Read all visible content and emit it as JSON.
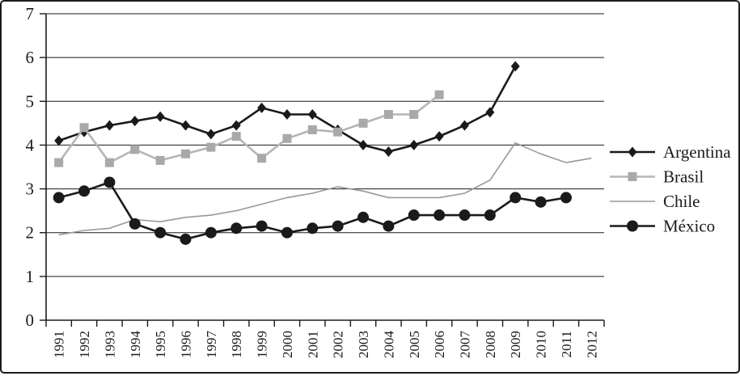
{
  "figure": {
    "background": "#ffffff",
    "border_color": "#1b1b1b"
  },
  "chart_data": {
    "type": "line",
    "title": "",
    "xlabel": "",
    "ylabel": "",
    "x": [
      "1991",
      "1992",
      "1993",
      "1994",
      "1995",
      "1996",
      "1997",
      "1998",
      "1999",
      "2000",
      "2001",
      "2002",
      "2003",
      "2004",
      "2005",
      "2006",
      "2007",
      "2008",
      "2009",
      "2010",
      "2011",
      "2012"
    ],
    "ylim": [
      0,
      7
    ],
    "ytick_labels": [
      "0",
      "1",
      "2",
      "3",
      "4",
      "5",
      "6",
      "7"
    ],
    "grid": true,
    "gridline_color": "#1b1b1b",
    "legend_position": "right",
    "series": [
      {
        "name": "Argentina",
        "marker": "diamond",
        "color": "#1a1a1a",
        "marker_color": "#1a1a1a",
        "line_width": 2.6,
        "values": [
          4.1,
          4.3,
          4.45,
          4.55,
          4.65,
          4.45,
          4.25,
          4.45,
          4.85,
          4.7,
          4.7,
          4.35,
          4.0,
          3.85,
          4.0,
          4.2,
          4.45,
          4.75,
          5.8,
          null,
          null,
          null
        ]
      },
      {
        "name": "Brasil",
        "marker": "square",
        "color": "#b5b5b5",
        "marker_color": "#a9a9a9",
        "line_width": 2.6,
        "values": [
          3.6,
          4.4,
          3.6,
          3.9,
          3.65,
          3.8,
          3.95,
          4.2,
          3.7,
          4.15,
          4.35,
          4.3,
          4.5,
          4.7,
          4.7,
          5.15,
          null,
          null,
          null,
          null,
          null,
          null
        ]
      },
      {
        "name": "Chile",
        "marker": "none",
        "color": "#999999",
        "marker_color": "#999999",
        "line_width": 1.6,
        "values": [
          1.95,
          2.05,
          2.1,
          2.3,
          2.25,
          2.35,
          2.4,
          2.5,
          2.65,
          2.8,
          2.9,
          3.05,
          2.95,
          2.8,
          2.8,
          2.8,
          2.9,
          3.2,
          4.05,
          3.8,
          3.6,
          3.7
        ]
      },
      {
        "name": "México",
        "marker": "circle",
        "color": "#1a1a1a",
        "marker_color": "#1a1a1a",
        "line_width": 2.6,
        "values": [
          2.8,
          2.95,
          3.15,
          2.2,
          2.0,
          1.85,
          2.0,
          2.1,
          2.15,
          2.0,
          2.1,
          2.15,
          2.35,
          2.15,
          2.4,
          2.4,
          2.4,
          2.4,
          2.8,
          2.7,
          2.8,
          null
        ]
      }
    ]
  }
}
